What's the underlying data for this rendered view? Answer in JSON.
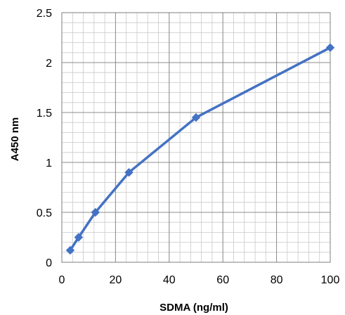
{
  "chart_data": {
    "type": "line",
    "xlabel": "SDMA (ng/ml)",
    "ylabel": "A450 nm",
    "xlim": [
      0,
      100
    ],
    "ylim": [
      0,
      2.5
    ],
    "x_ticks": [
      "0",
      "20",
      "40",
      "60",
      "80",
      "100"
    ],
    "y_ticks": [
      "0",
      "0.5",
      "1",
      "1.5",
      "2",
      "2.5"
    ],
    "grid": true,
    "minor_grid": true,
    "legend": "none",
    "series": [
      {
        "color": "#4472c4",
        "marker": "diamond",
        "x": [
          3.125,
          6.25,
          12.5,
          25,
          50,
          100
        ],
        "y": [
          0.12,
          0.25,
          0.5,
          0.9,
          1.45,
          2.15
        ]
      }
    ]
  }
}
